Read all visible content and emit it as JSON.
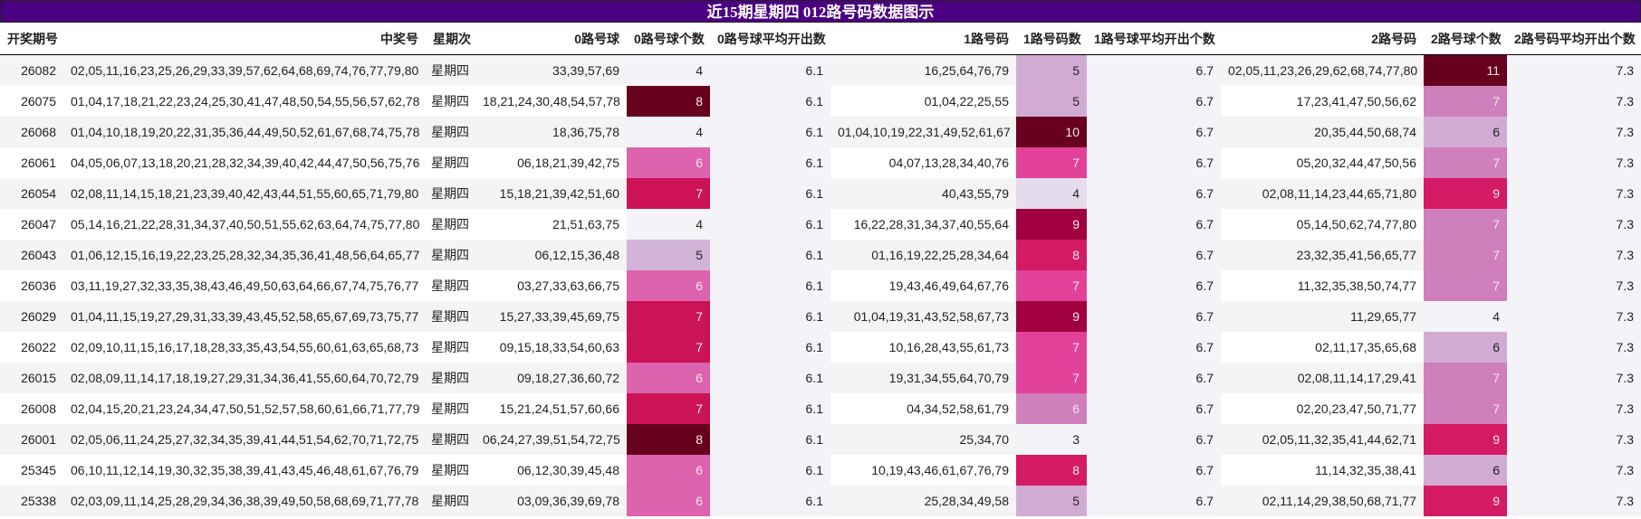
{
  "title": "近15期星期四 012路号码数据图示",
  "headers": [
    "开奖期号",
    "中奖号",
    "星期次",
    "0路号球",
    "0路号球个数",
    "0路号球平均开出数",
    "1路号码",
    "1路号码数",
    "1路号球平均开出个数",
    "2路号码",
    "2路号球个数",
    "2路号码平均开出个数"
  ],
  "averages": {
    "r0": "6.1",
    "r1": "6.7",
    "r2": "7.3"
  },
  "heat_colors": {
    "r0": {
      "5": "#d3b4d9",
      "6": "#dd63ae",
      "7": "#cc1355",
      "8": "#67001f"
    },
    "r1": {
      "4": "#e4dcec",
      "5": "#d2abd4",
      "6": "#d07fbd",
      "7": "#e2419a",
      "8": "#d41a64",
      "9": "#a00040",
      "10": "#67001f"
    },
    "r2": {
      "6": "#d2abd4",
      "7": "#d07fbd",
      "9": "#d41a64",
      "11": "#67001f"
    }
  },
  "rows": [
    {
      "issue": "26082",
      "numbers": "02,05,11,16,23,25,26,29,33,39,57,62,64,68,69,74,76,77,79,80",
      "weekday": "星期四",
      "r0": "33,39,57,69",
      "c0": "4",
      "r1": "16,25,64,76,79",
      "c1": "5",
      "r2": "02,05,11,23,26,29,62,68,74,77,80",
      "c2": "11"
    },
    {
      "issue": "26075",
      "numbers": "01,04,17,18,21,22,23,24,25,30,41,47,48,50,54,55,56,57,62,78",
      "weekday": "星期四",
      "r0": "18,21,24,30,48,54,57,78",
      "c0": "8",
      "r1": "01,04,22,25,55",
      "c1": "5",
      "r2": "17,23,41,47,50,56,62",
      "c2": "7"
    },
    {
      "issue": "26068",
      "numbers": "01,04,10,18,19,20,22,31,35,36,44,49,50,52,61,67,68,74,75,78",
      "weekday": "星期四",
      "r0": "18,36,75,78",
      "c0": "4",
      "r1": "01,04,10,19,22,31,49,52,61,67",
      "c1": "10",
      "r2": "20,35,44,50,68,74",
      "c2": "6"
    },
    {
      "issue": "26061",
      "numbers": "04,05,06,07,13,18,20,21,28,32,34,39,40,42,44,47,50,56,75,76",
      "weekday": "星期四",
      "r0": "06,18,21,39,42,75",
      "c0": "6",
      "r1": "04,07,13,28,34,40,76",
      "c1": "7",
      "r2": "05,20,32,44,47,50,56",
      "c2": "7"
    },
    {
      "issue": "26054",
      "numbers": "02,08,11,14,15,18,21,23,39,40,42,43,44,51,55,60,65,71,79,80",
      "weekday": "星期四",
      "r0": "15,18,21,39,42,51,60",
      "c0": "7",
      "r1": "40,43,55,79",
      "c1": "4",
      "r2": "02,08,11,14,23,44,65,71,80",
      "c2": "9"
    },
    {
      "issue": "26047",
      "numbers": "05,14,16,21,22,28,31,34,37,40,50,51,55,62,63,64,74,75,77,80",
      "weekday": "星期四",
      "r0": "21,51,63,75",
      "c0": "4",
      "r1": "16,22,28,31,34,37,40,55,64",
      "c1": "9",
      "r2": "05,14,50,62,74,77,80",
      "c2": "7"
    },
    {
      "issue": "26043",
      "numbers": "01,06,12,15,16,19,22,23,25,28,32,34,35,36,41,48,56,64,65,77",
      "weekday": "星期四",
      "r0": "06,12,15,36,48",
      "c0": "5",
      "r1": "01,16,19,22,25,28,34,64",
      "c1": "8",
      "r2": "23,32,35,41,56,65,77",
      "c2": "7"
    },
    {
      "issue": "26036",
      "numbers": "03,11,19,27,32,33,35,38,43,46,49,50,63,64,66,67,74,75,76,77",
      "weekday": "星期四",
      "r0": "03,27,33,63,66,75",
      "c0": "6",
      "r1": "19,43,46,49,64,67,76",
      "c1": "7",
      "r2": "11,32,35,38,50,74,77",
      "c2": "7"
    },
    {
      "issue": "26029",
      "numbers": "01,04,11,15,19,27,29,31,33,39,43,45,52,58,65,67,69,73,75,77",
      "weekday": "星期四",
      "r0": "15,27,33,39,45,69,75",
      "c0": "7",
      "r1": "01,04,19,31,43,52,58,67,73",
      "c1": "9",
      "r2": "11,29,65,77",
      "c2": "4"
    },
    {
      "issue": "26022",
      "numbers": "02,09,10,11,15,16,17,18,28,33,35,43,54,55,60,61,63,65,68,73",
      "weekday": "星期四",
      "r0": "09,15,18,33,54,60,63",
      "c0": "7",
      "r1": "10,16,28,43,55,61,73",
      "c1": "7",
      "r2": "02,11,17,35,65,68",
      "c2": "6"
    },
    {
      "issue": "26015",
      "numbers": "02,08,09,11,14,17,18,19,27,29,31,34,36,41,55,60,64,70,72,79",
      "weekday": "星期四",
      "r0": "09,18,27,36,60,72",
      "c0": "6",
      "r1": "19,31,34,55,64,70,79",
      "c1": "7",
      "r2": "02,08,11,14,17,29,41",
      "c2": "7"
    },
    {
      "issue": "26008",
      "numbers": "02,04,15,20,21,23,24,34,47,50,51,52,57,58,60,61,66,71,77,79",
      "weekday": "星期四",
      "r0": "15,21,24,51,57,60,66",
      "c0": "7",
      "r1": "04,34,52,58,61,79",
      "c1": "6",
      "r2": "02,20,23,47,50,71,77",
      "c2": "7"
    },
    {
      "issue": "26001",
      "numbers": "02,05,06,11,24,25,27,32,34,35,39,41,44,51,54,62,70,71,72,75",
      "weekday": "星期四",
      "r0": "06,24,27,39,51,54,72,75",
      "c0": "8",
      "r1": "25,34,70",
      "c1": "3",
      "r2": "02,05,11,32,35,41,44,62,71",
      "c2": "9"
    },
    {
      "issue": "25345",
      "numbers": "06,10,11,12,14,19,30,32,35,38,39,41,43,45,46,48,61,67,76,79",
      "weekday": "星期四",
      "r0": "06,12,30,39,45,48",
      "c0": "6",
      "r1": "10,19,43,46,61,67,76,79",
      "c1": "8",
      "r2": "11,14,32,35,38,41",
      "c2": "6"
    },
    {
      "issue": "25338",
      "numbers": "02,03,09,11,14,25,28,29,34,36,38,39,49,50,58,68,69,71,77,78",
      "weekday": "星期四",
      "r0": "03,09,36,39,69,78",
      "c0": "6",
      "r1": "25,28,34,49,58",
      "c1": "5",
      "r2": "02,11,14,29,38,50,68,71,77",
      "c2": "9"
    }
  ]
}
